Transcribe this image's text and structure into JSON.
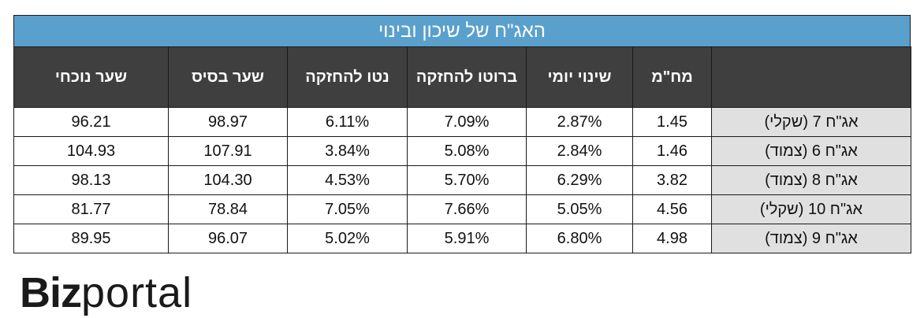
{
  "chart_data": {
    "type": "table",
    "title": "האג\"ח של שיכון ובינוי",
    "columns": [
      "",
      "מח\"מ",
      "שינוי יומי",
      "ברוטו להחזקה",
      "נטו להחזקה",
      "שער בסיס",
      "שער נוכחי"
    ],
    "rows": [
      [
        "אג\"ח 7 (שקלי)",
        "1.45",
        "2.87%",
        "7.09%",
        "6.11%",
        "98.97",
        "96.21"
      ],
      [
        "אג\"ח 6 (צמוד)",
        "1.46",
        "2.84%",
        "5.08%",
        "3.84%",
        "107.91",
        "104.93"
      ],
      [
        "אג\"ח 8 (צמוד)",
        "3.82",
        "6.29%",
        "5.70%",
        "4.53%",
        "104.30",
        "98.13"
      ],
      [
        "אג\"ח 10 (שקלי)",
        "4.56",
        "5.05%",
        "7.66%",
        "7.05%",
        "78.84",
        "81.77"
      ],
      [
        "אג\"ח 9 (צמוד)",
        "4.98",
        "6.80%",
        "5.91%",
        "5.02%",
        "96.07",
        "89.95"
      ]
    ]
  },
  "logo": {
    "biz": "Biz",
    "portal": "portal"
  },
  "colors": {
    "title_bg": "#5aa0cd",
    "header_bg": "#3f3f3f",
    "name_cell_bg": "#e0e0e0"
  }
}
